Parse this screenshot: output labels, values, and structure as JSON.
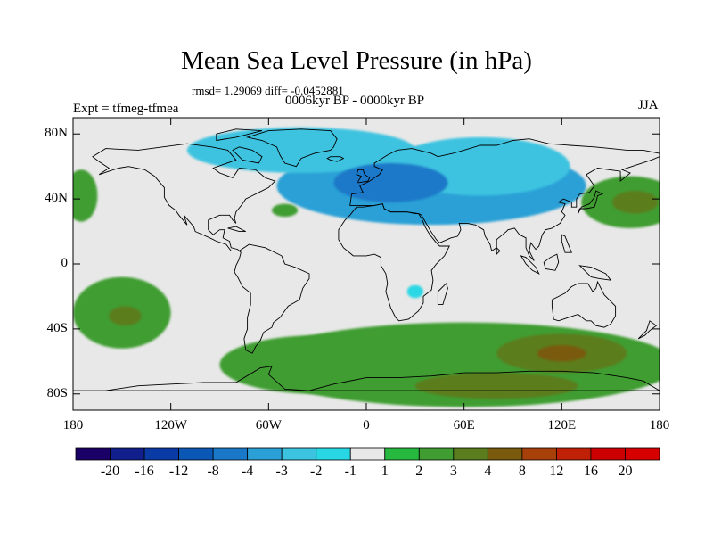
{
  "title": "Mean Sea Level Pressure (in hPa)",
  "stats": "rmsd= 1.29069 diff= -0.0452881",
  "period": "0006kyr BP - 0000kyr BP",
  "experiment": "Expt = tfmeg-tfmea",
  "season": "JJA",
  "map": {
    "projection": "cylindrical-equidistant",
    "lon_range": [
      -180,
      180
    ],
    "lat_range": [
      -90,
      90
    ],
    "background_color": "#e8e8e8",
    "coastline_color": "#000000",
    "y_ticks": [
      {
        "lat": 80,
        "label": "80N"
      },
      {
        "lat": 40,
        "label": "40N"
      },
      {
        "lat": 0,
        "label": "0"
      },
      {
        "lat": -40,
        "label": "40S"
      },
      {
        "lat": -80,
        "label": "80S"
      }
    ],
    "x_ticks": [
      {
        "lon": -180,
        "label": "180"
      },
      {
        "lon": -120,
        "label": "120W"
      },
      {
        "lon": -60,
        "label": "60W"
      },
      {
        "lon": 0,
        "label": "0"
      },
      {
        "lon": 60,
        "label": "60E"
      },
      {
        "lon": 120,
        "label": "120E"
      },
      {
        "lon": 180,
        "label": "180"
      }
    ],
    "anomalies": [
      {
        "name": "north-atlantic-eurasia-low",
        "lon": 40,
        "lat": 48,
        "rlon": 95,
        "rlat": 24,
        "level": "-3"
      },
      {
        "name": "arctic-greenland-low",
        "lon": -40,
        "lat": 70,
        "rlon": 70,
        "rlat": 14,
        "level": "-2"
      },
      {
        "name": "central-eurasia-low",
        "lon": 70,
        "lat": 60,
        "rlon": 55,
        "rlat": 18,
        "level": "-2"
      },
      {
        "name": "europe-deep-low",
        "lon": 15,
        "lat": 50,
        "rlon": 35,
        "rlat": 12,
        "level": "-4"
      },
      {
        "name": "south-atlantic-low",
        "lon": 30,
        "lat": -48,
        "rlon": 22,
        "rlat": 9,
        "level": "-2"
      },
      {
        "name": "south-africa-low",
        "lon": 30,
        "lat": -17,
        "rlon": 5,
        "rlat": 4,
        "level": "-1"
      },
      {
        "name": "atlantic-high",
        "lon": -50,
        "lat": 33,
        "rlon": 8,
        "rlat": 4,
        "level": "2"
      },
      {
        "name": "west-pacific-high",
        "lon": 162,
        "lat": 38,
        "rlon": 30,
        "rlat": 16,
        "level": "2"
      },
      {
        "name": "west-pacific-high-core",
        "lon": 165,
        "lat": 38,
        "rlon": 14,
        "rlat": 7,
        "level": "3"
      },
      {
        "name": "northeast-pacific-high",
        "lon": -175,
        "lat": 42,
        "rlon": 10,
        "rlat": 16,
        "level": "2"
      },
      {
        "name": "south-pacific-high",
        "lon": -150,
        "lat": -30,
        "rlon": 30,
        "rlat": 22,
        "level": "2"
      },
      {
        "name": "south-pacific-high-core",
        "lon": -148,
        "lat": -32,
        "rlon": 10,
        "rlat": 6,
        "level": "3"
      },
      {
        "name": "southern-ocean-high",
        "lon": 60,
        "lat": -62,
        "rlon": 130,
        "rlat": 26,
        "level": "2"
      },
      {
        "name": "indian-ocean-high",
        "lon": 120,
        "lat": -55,
        "rlon": 40,
        "rlat": 12,
        "level": "3"
      },
      {
        "name": "indian-ocean-high-core",
        "lon": 120,
        "lat": -55,
        "rlon": 15,
        "rlat": 5,
        "level": "4"
      },
      {
        "name": "antarctic-high",
        "lon": 80,
        "lat": -75,
        "rlon": 50,
        "rlat": 8,
        "level": "3"
      },
      {
        "name": "drake-passage-high",
        "lon": -30,
        "lat": -62,
        "rlon": 60,
        "rlat": 18,
        "level": "2"
      }
    ]
  },
  "colorbar": {
    "levels": [
      "-20",
      "-16",
      "-12",
      "-8",
      "-4",
      "-3",
      "-2",
      "-1",
      "1",
      "2",
      "3",
      "4",
      "8",
      "12",
      "16",
      "20"
    ],
    "colors": [
      "#1a0066",
      "#101f8c",
      "#0a3aa6",
      "#0a57b5",
      "#1a78c8",
      "#2aa0d6",
      "#3cc3e0",
      "#29d7e4",
      "#e8e8e8",
      "#27b93f",
      "#3f9d32",
      "#5b7d1e",
      "#7a5a0c",
      "#a8400a",
      "#c02005",
      "#cc0000",
      "#d60000"
    ]
  }
}
